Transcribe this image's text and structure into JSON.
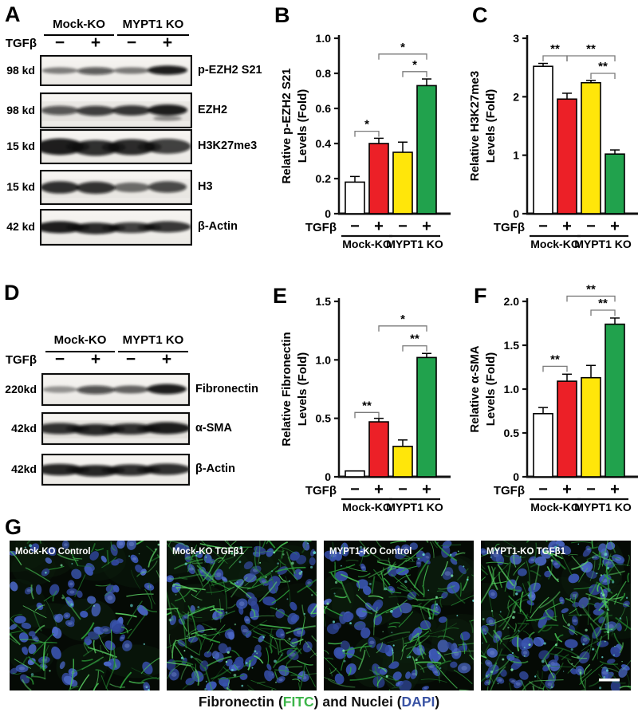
{
  "panel_letters": {
    "a": "A",
    "b": "B",
    "c": "C",
    "d": "D",
    "e": "E",
    "f": "F",
    "g": "G"
  },
  "panels": {
    "A": {
      "letter": "A",
      "treatment_label": "TGFβ",
      "groups": [
        "Mock-KO",
        "MYPT1 KO"
      ],
      "signs": [
        "−",
        "+",
        "−",
        "+"
      ],
      "blots": [
        {
          "mw": "98 kd",
          "protein": "p-EZH2 S21",
          "bands": [
            0.4,
            0.62,
            0.42,
            1.0
          ]
        },
        {
          "mw": "98 kd",
          "protein": "EZH2",
          "bands": [
            0.65,
            0.8,
            0.85,
            1.0
          ]
        },
        {
          "mw": "15 kd",
          "protein": "H3K27me3",
          "bands": [
            1.0,
            0.9,
            0.92,
            0.8
          ]
        },
        {
          "mw": "15 kd",
          "protein": "H3",
          "bands": [
            0.9,
            0.88,
            0.5,
            0.75
          ]
        },
        {
          "mw": "42 kd",
          "protein": "β-Actin",
          "bands": [
            1.0,
            0.92,
            0.8,
            0.85
          ]
        }
      ]
    },
    "D": {
      "letter": "D",
      "treatment_label": "TGFβ",
      "groups": [
        "Mock-KO",
        "MYPT1 KO"
      ],
      "signs": [
        "−",
        "+",
        "−",
        "+"
      ],
      "blots": [
        {
          "mw": "220kd",
          "protein": "Fibronectin",
          "bands": [
            0.28,
            0.7,
            0.55,
            1.0
          ]
        },
        {
          "mw": "42kd",
          "protein": "α-SMA",
          "bands": [
            0.88,
            0.92,
            0.88,
            1.0
          ]
        },
        {
          "mw": "42kd",
          "protein": "β-Actin",
          "bands": [
            0.95,
            0.95,
            0.9,
            0.9
          ]
        }
      ]
    },
    "G": {
      "letter": "G",
      "images": [
        {
          "label": "Mock-KO Control",
          "seed": 11,
          "nuclei": 82,
          "fibers": 95,
          "specks": 18,
          "scalebar": false
        },
        {
          "label": "Mock-KO TGFβ1",
          "seed": 22,
          "nuclei": 95,
          "fibers": 185,
          "specks": 55,
          "scalebar": false
        },
        {
          "label": "MYPT1-KO Control",
          "seed": 33,
          "nuclei": 88,
          "fibers": 150,
          "specks": 40,
          "scalebar": false
        },
        {
          "label": "MYPT1-KO TGFβ1",
          "seed": 44,
          "nuclei": 100,
          "fibers": 200,
          "specks": 70,
          "scalebar": true
        }
      ],
      "caption_parts": [
        {
          "text": "Fibronectin (",
          "color": "#111111"
        },
        {
          "text": "FITC",
          "color": "#3db54a"
        },
        {
          "text": ") and Nuclei (",
          "color": "#111111"
        },
        {
          "text": "DAPI",
          "color": "#3a53a4"
        },
        {
          "text": ")",
          "color": "#111111"
        }
      ]
    }
  },
  "chart_data": [
    {
      "panel": "B",
      "type": "bar",
      "ylabel": "Relative p-EZH2 S21 Levels (Fold)",
      "ylabel_lines": [
        "Relative p-EZH2 S21",
        "Levels (Fold)"
      ],
      "ylim": [
        0,
        1.0
      ],
      "yticks": [
        0,
        0.2,
        0.4,
        0.6,
        0.8,
        1.0
      ],
      "ytick_labels": [
        "0",
        "0.2",
        "0.4",
        "0.6",
        "0.8",
        "1.0"
      ],
      "categories": [
        "Mock-KO −TGFβ",
        "Mock-KO +TGFβ",
        "MYPT1 KO −TGFβ",
        "MYPT1 KO +TGFβ"
      ],
      "x_signs": [
        "−",
        "+",
        "−",
        "+"
      ],
      "x_groups": [
        "Mock-KO",
        "MYPT1 KO"
      ],
      "x_row_label": "TGFβ",
      "values": [
        0.18,
        0.4,
        0.35,
        0.73
      ],
      "errors": [
        0.032,
        0.03,
        0.058,
        0.038
      ],
      "bar_colors": [
        "#ffffff",
        "#ec2027",
        "#ffe60a",
        "#21a24d"
      ],
      "significance": [
        {
          "from": 1,
          "to": 2,
          "label": "*",
          "y": 0.47
        },
        {
          "from": 3,
          "to": 4,
          "label": "*",
          "y": 0.81
        },
        {
          "from": 2,
          "to": 4,
          "label": "*",
          "y": 0.91
        }
      ]
    },
    {
      "panel": "C",
      "type": "bar",
      "ylabel": "Relative H3K27me3 Levels (Fold)",
      "ylabel_lines": [
        "Relative H3K27me3",
        "Levels (Fold)"
      ],
      "ylim": [
        0,
        3
      ],
      "yticks": [
        0,
        1,
        2,
        3
      ],
      "ytick_labels": [
        "0",
        "1",
        "2",
        "3"
      ],
      "categories": [
        "Mock-KO −TGFβ",
        "Mock-KO +TGFβ",
        "MYPT1 KO −TGFβ",
        "MYPT1 KO +TGFβ"
      ],
      "x_signs": [
        "−",
        "+",
        "−",
        "+"
      ],
      "x_groups": [
        "Mock-KO",
        "MYPT1 KO"
      ],
      "x_row_label": "TGFβ",
      "values": [
        2.52,
        1.96,
        2.24,
        1.02
      ],
      "errors": [
        0.05,
        0.1,
        0.04,
        0.07
      ],
      "bar_colors": [
        "#ffffff",
        "#ec2027",
        "#ffe60a",
        "#21a24d"
      ],
      "significance": [
        {
          "from": 1,
          "to": 2,
          "label": "**",
          "y": 2.7
        },
        {
          "from": 3,
          "to": 4,
          "label": "**",
          "y": 2.4
        },
        {
          "from": 2,
          "to": 4,
          "label": "**",
          "y": 2.7
        }
      ]
    },
    {
      "panel": "E",
      "type": "bar",
      "ylabel": "Relative Fibronectin Levels (Fold)",
      "ylabel_lines": [
        "Relative Fibronectin",
        "Levels (Fold)"
      ],
      "ylim": [
        0,
        1.5
      ],
      "yticks": [
        0,
        0.5,
        1.0,
        1.5
      ],
      "ytick_labels": [
        "0",
        "0.5",
        "1.0",
        "1.5"
      ],
      "categories": [
        "Mock-KO −TGFβ",
        "Mock-KO +TGFβ",
        "MYPT1 KO −TGFβ",
        "MYPT1 KO +TGFβ"
      ],
      "x_signs": [
        "−",
        "+",
        "−",
        "+"
      ],
      "x_groups": [
        "Mock-KO",
        "MYPT1 KO"
      ],
      "x_row_label": "TGFβ",
      "values": [
        0.05,
        0.47,
        0.26,
        1.02
      ],
      "errors": [
        0.0,
        0.03,
        0.055,
        0.035
      ],
      "bar_colors": [
        "#ffffff",
        "#ec2027",
        "#ffe60a",
        "#21a24d"
      ],
      "significance": [
        {
          "from": 1,
          "to": 2,
          "label": "**",
          "y": 0.55
        },
        {
          "from": 3,
          "to": 4,
          "label": "**",
          "y": 1.12
        },
        {
          "from": 2,
          "to": 4,
          "label": "*",
          "y": 1.29
        }
      ]
    },
    {
      "panel": "F",
      "type": "bar",
      "ylabel": "Relative α-SMA Levels (Fold)",
      "ylabel_lines": [
        "Relative α-SMA",
        "Levels (Fold)"
      ],
      "ylim": [
        0,
        2.0
      ],
      "yticks": [
        0,
        0.5,
        1.0,
        1.5,
        2.0
      ],
      "ytick_labels": [
        "0",
        "0.5",
        "1.0",
        "1.5",
        "2.0"
      ],
      "categories": [
        "Mock-KO −TGFβ",
        "Mock-KO +TGFβ",
        "MYPT1 KO −TGFβ",
        "MYPT1 KO +TGFβ"
      ],
      "x_signs": [
        "−",
        "+",
        "−",
        "+"
      ],
      "x_groups": [
        "Mock-KO",
        "MYPT1 KO"
      ],
      "x_row_label": "TGFβ",
      "values": [
        0.72,
        1.09,
        1.13,
        1.74
      ],
      "errors": [
        0.07,
        0.08,
        0.14,
        0.07
      ],
      "bar_colors": [
        "#ffffff",
        "#ec2027",
        "#ffe60a",
        "#21a24d"
      ],
      "significance": [
        {
          "from": 1,
          "to": 2,
          "label": "**",
          "y": 1.26
        },
        {
          "from": 3,
          "to": 4,
          "label": "**",
          "y": 1.9
        },
        {
          "from": 2,
          "to": 4,
          "label": "**",
          "y": 2.06
        }
      ]
    }
  ]
}
